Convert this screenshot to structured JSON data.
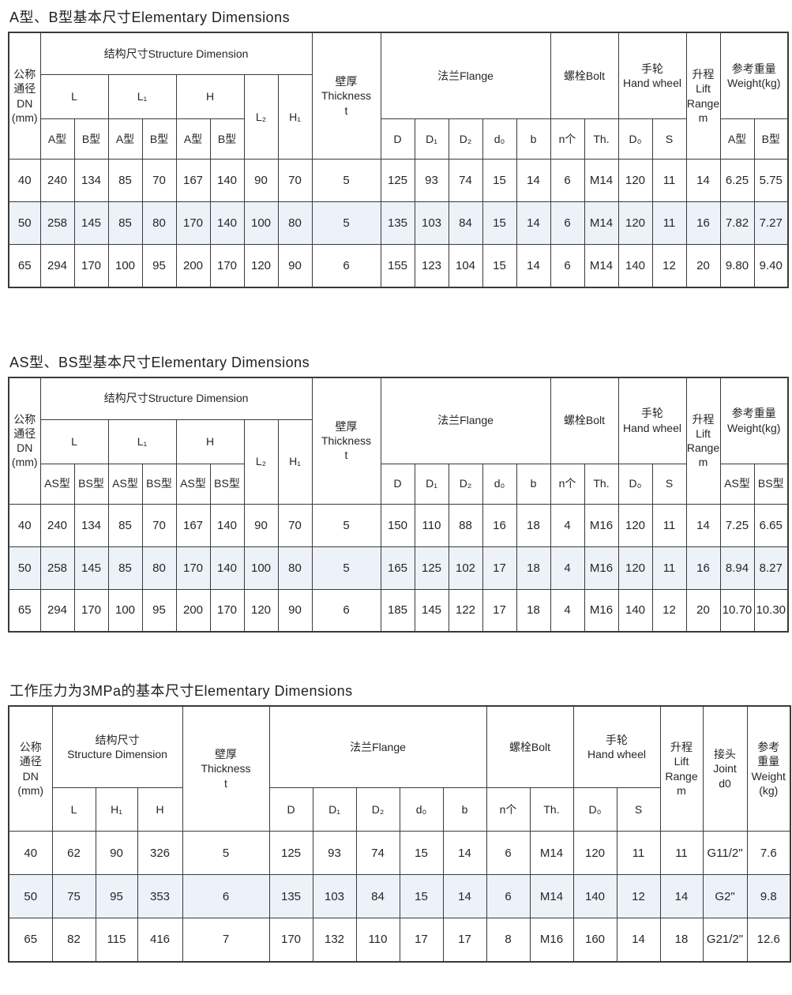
{
  "tables": [
    {
      "title": "A型、B型基本尺寸Elementary Dimensions",
      "headers": {
        "dn": "公称\n通径\nDN\n(mm)",
        "structure": "结构尺寸Structure Dimension",
        "l": "L",
        "l1": "L₁",
        "h": "H",
        "l2": "L₂",
        "h1": "H₁",
        "variant_a": "A型",
        "variant_b": "B型",
        "thickness": "壁厚\nThickness\nt",
        "flange": "法兰Flange",
        "d": "D",
        "d1": "D₁",
        "d2": "D₂",
        "d0": "d₀",
        "b": "b",
        "bolt": "螺栓Bolt",
        "n": "n个",
        "th": "Th.",
        "handwheel": "手轮\nHand wheel",
        "dw": "D₀",
        "s": "S",
        "lift": "升程\nLift\nRange\nm",
        "weight": "参考重量\nWeight(kg)"
      },
      "rows": [
        [
          "40",
          "240",
          "134",
          "85",
          "70",
          "167",
          "140",
          "90",
          "70",
          "5",
          "125",
          "93",
          "74",
          "15",
          "14",
          "6",
          "M14",
          "120",
          "11",
          "14",
          "6.25",
          "5.75"
        ],
        [
          "50",
          "258",
          "145",
          "85",
          "80",
          "170",
          "140",
          "100",
          "80",
          "5",
          "135",
          "103",
          "84",
          "15",
          "14",
          "6",
          "M14",
          "120",
          "11",
          "16",
          "7.82",
          "7.27"
        ],
        [
          "65",
          "294",
          "170",
          "100",
          "95",
          "200",
          "170",
          "120",
          "90",
          "6",
          "155",
          "123",
          "104",
          "15",
          "14",
          "6",
          "M14",
          "140",
          "12",
          "20",
          "9.80",
          "9.40"
        ]
      ]
    },
    {
      "title": "AS型、BS型基本尺寸Elementary Dimensions",
      "headers": {
        "dn": "公称\n通径\nDN\n(mm)",
        "structure": "结构尺寸Structure Dimension",
        "l": "L",
        "l1": "L₁",
        "h": "H",
        "l2": "L₂",
        "h1": "H₁",
        "variant_a": "AS型",
        "variant_b": "BS型",
        "thickness": "壁厚\nThickness\nt",
        "flange": "法兰Flange",
        "d": "D",
        "d1": "D₁",
        "d2": "D₂",
        "d0": "d₀",
        "b": "b",
        "bolt": "螺栓Bolt",
        "n": "n个",
        "th": "Th.",
        "handwheel": "手轮\nHand wheel",
        "dw": "D₀",
        "s": "S",
        "lift": "升程\nLift\nRange\nm",
        "weight": "参考重量\nWeight(kg)"
      },
      "rows": [
        [
          "40",
          "240",
          "134",
          "85",
          "70",
          "167",
          "140",
          "90",
          "70",
          "5",
          "150",
          "110",
          "88",
          "16",
          "18",
          "4",
          "M16",
          "120",
          "11",
          "14",
          "7.25",
          "6.65"
        ],
        [
          "50",
          "258",
          "145",
          "85",
          "80",
          "170",
          "140",
          "100",
          "80",
          "5",
          "165",
          "125",
          "102",
          "17",
          "18",
          "4",
          "M16",
          "120",
          "11",
          "16",
          "8.94",
          "8.27"
        ],
        [
          "65",
          "294",
          "170",
          "100",
          "95",
          "200",
          "170",
          "120",
          "90",
          "6",
          "185",
          "145",
          "122",
          "17",
          "18",
          "4",
          "M16",
          "140",
          "12",
          "20",
          "10.70",
          "10.30"
        ]
      ]
    },
    {
      "title": "工作压力为3MPa的基本尺寸Elementary Dimensions",
      "headers": {
        "dn": "公称\n通径\nDN\n(mm)",
        "structure": "结构尺寸\nStructure Dimension",
        "l": "L",
        "h1": "H₁",
        "h": "H",
        "thickness": "壁厚\nThickness\nt",
        "flange": "法兰Flange",
        "d": "D",
        "d1": "D₁",
        "d2": "D₂",
        "d0": "d₀",
        "b": "b",
        "bolt": "螺栓Bolt",
        "n": "n个",
        "th": "Th.",
        "handwheel": "手轮\nHand wheel",
        "dw": "D₀",
        "s": "S",
        "lift": "升程\nLift\nRange\nm",
        "joint": "接头\nJoint\nd0",
        "weight": "参考\n重量\nWeight\n(kg)"
      },
      "rows": [
        [
          "40",
          "62",
          "90",
          "326",
          "5",
          "125",
          "93",
          "74",
          "15",
          "14",
          "6",
          "M14",
          "120",
          "11",
          "11",
          "G11/2\"",
          "7.6"
        ],
        [
          "50",
          "75",
          "95",
          "353",
          "6",
          "135",
          "103",
          "84",
          "15",
          "14",
          "6",
          "M14",
          "140",
          "12",
          "14",
          "G2\"",
          "9.8"
        ],
        [
          "65",
          "82",
          "115",
          "416",
          "7",
          "170",
          "132",
          "110",
          "17",
          "17",
          "8",
          "M16",
          "160",
          "14",
          "18",
          "G21/2\"",
          "12.6"
        ]
      ]
    }
  ],
  "colors": {
    "border": "#3a3a3a",
    "alt_row_bg": "#edf2f9",
    "text": "#262626"
  }
}
